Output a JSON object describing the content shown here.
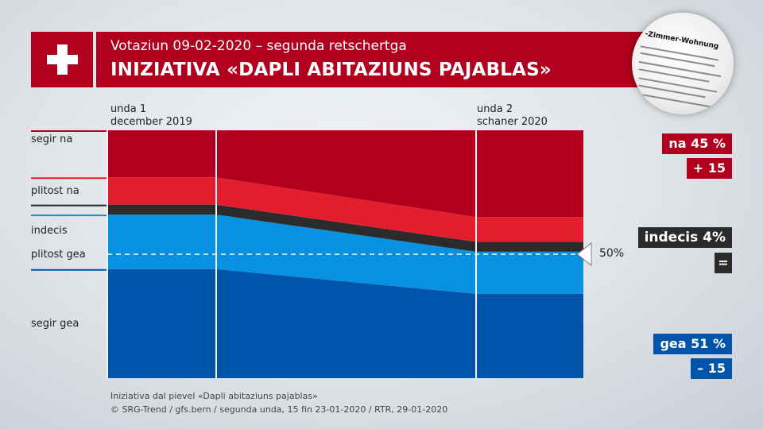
{
  "header": {
    "subtitle": "Votaziun 09-02-2020  –  segunda retschertga",
    "title": "INIZIATIVA «DAPLI ABITAZIUNS PAJABLAS»"
  },
  "newspaper": {
    "headline": "-Zimmer-Wohnung"
  },
  "chart_data": {
    "type": "area",
    "stacked": true,
    "unit": "%",
    "periods": [
      {
        "line1": "unda 1",
        "line2": "december 2019"
      },
      {
        "line1": "unda 2",
        "line2": "schaner 2020"
      }
    ],
    "series": [
      {
        "name": "segir gea",
        "values": [
          44,
          34
        ],
        "color": "#0055aa"
      },
      {
        "name": "plitost gea",
        "values": [
          22,
          17
        ],
        "color": "#0891e0"
      },
      {
        "name": "indecis",
        "values": [
          4,
          4
        ],
        "color": "#2b2b2b"
      },
      {
        "name": "plitost na",
        "values": [
          11,
          10
        ],
        "color": "#e41e2f"
      },
      {
        "name": "segir na",
        "values": [
          19,
          35
        ],
        "color": "#b0001e"
      }
    ],
    "ylim": [
      0,
      100
    ],
    "reference_line": {
      "value": 50,
      "label": "50%"
    }
  },
  "results": {
    "na": {
      "label": "na 45 %",
      "change": "+ 15",
      "color": "#b0001e"
    },
    "indecis": {
      "label": "indecis 4%",
      "change": "=",
      "color": "#2b2b2b"
    },
    "gea": {
      "label": "gea 51 %",
      "change": "– 15",
      "color": "#0055aa"
    }
  },
  "footer": {
    "line1": "Iniziativa dal pievel «Dapli abitaziuns pajablas»",
    "line2": "© SRG-Trend / gfs.bern  /  segunda unda, 15 fin 23-01-2020  / RTR, 29-01-2020"
  }
}
